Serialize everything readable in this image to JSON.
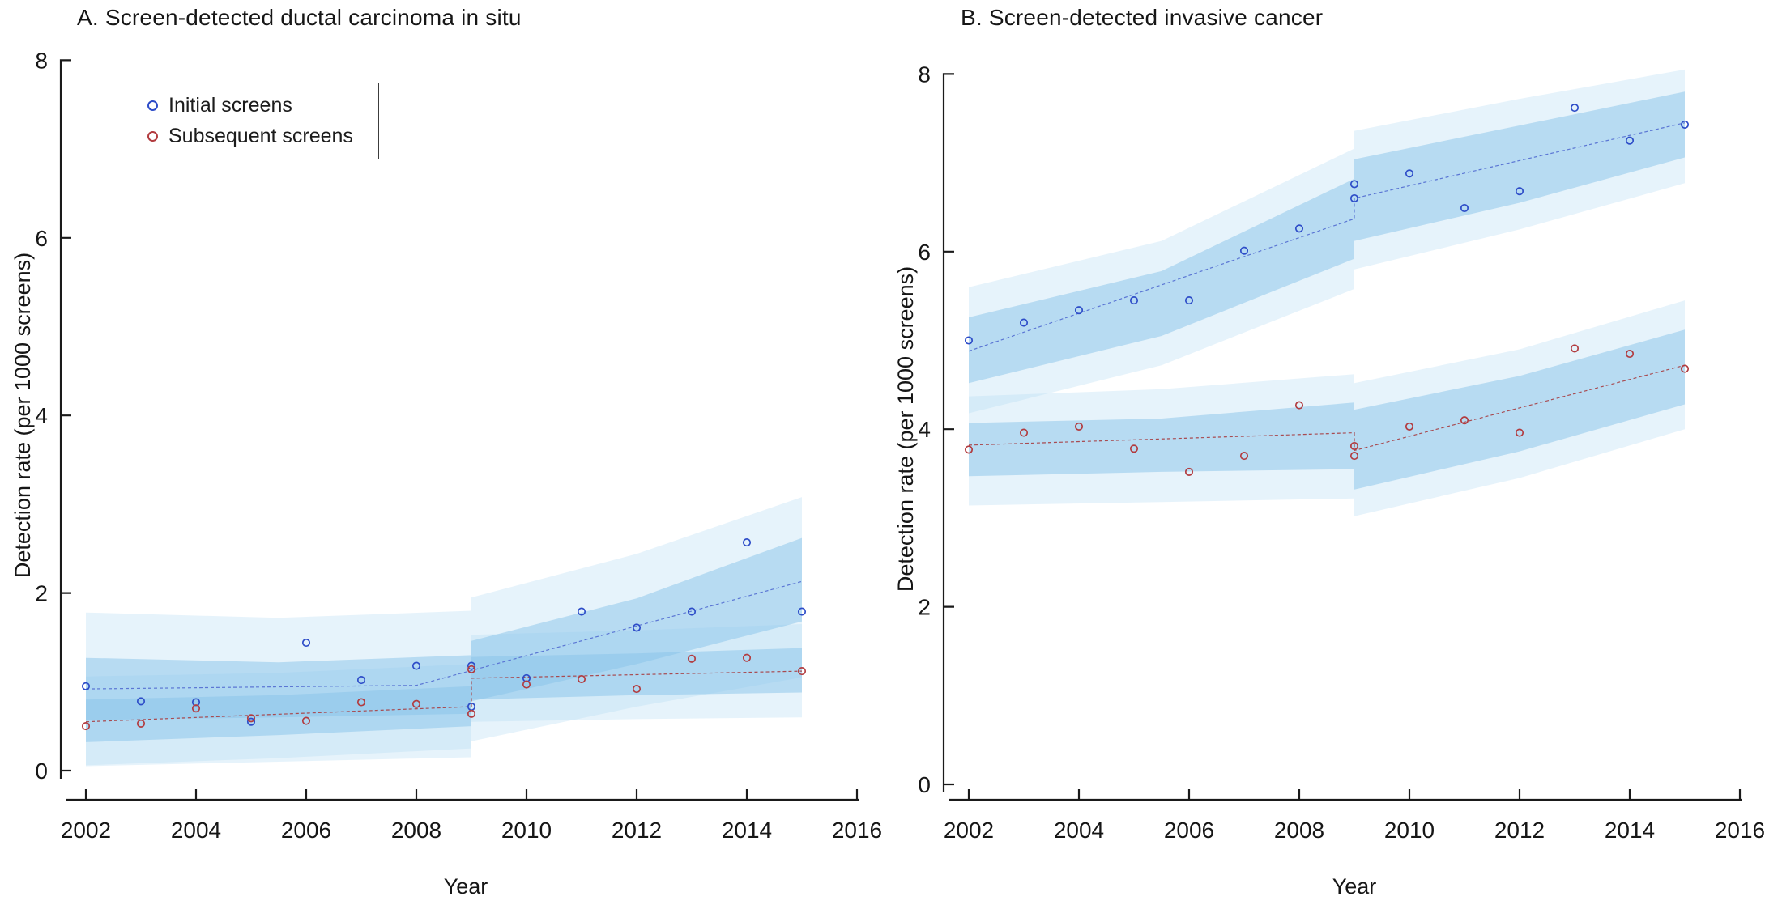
{
  "page": {
    "background": "#ffffff"
  },
  "legend": {
    "items": [
      {
        "label": "Initial screens",
        "series": "initial"
      },
      {
        "label": "Subsequent screens",
        "series": "subsequent"
      }
    ]
  },
  "style": {
    "marker_initial": "#2d4cc8",
    "marker_subsequent": "#b23b3f",
    "line_initial": "#5b76d4",
    "line_subsequent": "#a84a50",
    "band_inner": "rgba(135,196,233,0.50)",
    "band_outer": "rgba(180,220,243,0.33)",
    "axis": "#1a1a1a",
    "text": "#161616"
  },
  "chart_data": [
    {
      "type": "scatter",
      "panel": "A",
      "title": "A. Screen-detected ductal carcinoma in situ",
      "xlabel": "Year",
      "ylabel": "Detection rate (per 1000 screens)",
      "x_ticks": [
        2002,
        2004,
        2006,
        2008,
        2010,
        2012,
        2014,
        2016
      ],
      "y_ticks": [
        0,
        2,
        4,
        6,
        8
      ],
      "xlim": [
        2001.6,
        2016.1
      ],
      "ylim": [
        0,
        8
      ],
      "discontinuity_year": 2009,
      "grid": false,
      "legend_position": "top-left-inside",
      "series": [
        {
          "name": "Initial screens",
          "key": "initial",
          "points": [
            [
              2002,
              0.95
            ],
            [
              2003,
              0.78
            ],
            [
              2004,
              0.77
            ],
            [
              2005,
              0.55
            ],
            [
              2006,
              1.44
            ],
            [
              2007,
              1.02
            ],
            [
              2008,
              1.18
            ],
            [
              2009,
              0.72
            ],
            [
              2009,
              1.18
            ],
            [
              2010,
              1.04
            ],
            [
              2011,
              1.79
            ],
            [
              2012,
              1.61
            ],
            [
              2013,
              1.79
            ],
            [
              2014,
              2.57
            ],
            [
              2015,
              1.79
            ]
          ]
        },
        {
          "name": "Subsequent screens",
          "key": "subsequent",
          "points": [
            [
              2002,
              0.5
            ],
            [
              2003,
              0.53
            ],
            [
              2004,
              0.7
            ],
            [
              2005,
              0.59
            ],
            [
              2006,
              0.56
            ],
            [
              2007,
              0.77
            ],
            [
              2008,
              0.75
            ],
            [
              2009,
              0.64
            ],
            [
              2009,
              1.14
            ],
            [
              2010,
              0.97
            ],
            [
              2011,
              1.03
            ],
            [
              2012,
              0.92
            ],
            [
              2013,
              1.26
            ],
            [
              2014,
              1.27
            ],
            [
              2015,
              1.12
            ]
          ]
        }
      ],
      "fit_lines": [
        {
          "series": "initial",
          "path": [
            [
              2002,
              0.92
            ],
            [
              2008,
              0.96
            ],
            [
              2015,
              2.13
            ]
          ]
        },
        {
          "series": "subsequent",
          "path": [
            [
              2002,
              0.55
            ],
            [
              2009,
              0.72
            ],
            [
              2009,
              1.04
            ],
            [
              2015,
              1.12
            ]
          ]
        }
      ],
      "bands": [
        {
          "series": "initial",
          "level": "outer",
          "x": [
            2002,
            2005.5,
            2009
          ],
          "lo": [
            0.05,
            0.1,
            0.15
          ],
          "hi": [
            1.78,
            1.72,
            1.8
          ]
        },
        {
          "series": "initial",
          "level": "outer",
          "x": [
            2009,
            2012,
            2015
          ],
          "lo": [
            0.33,
            0.72,
            1.05
          ],
          "hi": [
            1.95,
            2.44,
            3.08
          ]
        },
        {
          "series": "subsequent",
          "level": "outer",
          "x": [
            2002,
            2005.5,
            2009
          ],
          "lo": [
            0.06,
            0.14,
            0.25
          ],
          "hi": [
            1.06,
            1.1,
            1.2
          ]
        },
        {
          "series": "subsequent",
          "level": "outer",
          "x": [
            2009,
            2012,
            2015
          ],
          "lo": [
            0.55,
            0.58,
            0.6
          ],
          "hi": [
            1.53,
            1.58,
            1.65
          ]
        },
        {
          "series": "initial",
          "level": "inner",
          "x": [
            2002,
            2005.5,
            2009
          ],
          "lo": [
            0.57,
            0.6,
            0.64
          ],
          "hi": [
            1.27,
            1.22,
            1.3
          ]
        },
        {
          "series": "initial",
          "level": "inner",
          "x": [
            2009,
            2012,
            2015
          ],
          "lo": [
            0.78,
            1.2,
            1.68
          ],
          "hi": [
            1.46,
            1.94,
            2.62
          ]
        },
        {
          "series": "subsequent",
          "level": "inner",
          "x": [
            2002,
            2005.5,
            2009
          ],
          "lo": [
            0.32,
            0.4,
            0.5
          ],
          "hi": [
            0.8,
            0.85,
            0.95
          ]
        },
        {
          "series": "subsequent",
          "level": "inner",
          "x": [
            2009,
            2012,
            2015
          ],
          "lo": [
            0.8,
            0.85,
            0.88
          ],
          "hi": [
            1.28,
            1.32,
            1.38
          ]
        }
      ]
    },
    {
      "type": "scatter",
      "panel": "B",
      "title": "B. Screen-detected invasive cancer",
      "xlabel": "Year",
      "ylabel": "Detection rate (per 1000 screens)",
      "x_ticks": [
        2002,
        2004,
        2006,
        2008,
        2010,
        2012,
        2014,
        2016
      ],
      "y_ticks": [
        0,
        2,
        4,
        6,
        8
      ],
      "xlim": [
        2001.6,
        2016.1
      ],
      "ylim": [
        0,
        8
      ],
      "discontinuity_year": 2009,
      "grid": false,
      "legend_position": "none",
      "series": [
        {
          "name": "Initial screens",
          "key": "initial",
          "points": [
            [
              2002,
              5.0
            ],
            [
              2003,
              5.2
            ],
            [
              2004,
              5.34
            ],
            [
              2005,
              5.45
            ],
            [
              2006,
              5.45
            ],
            [
              2007,
              6.01
            ],
            [
              2008,
              6.26
            ],
            [
              2009,
              6.6
            ],
            [
              2009,
              6.76
            ],
            [
              2010,
              6.88
            ],
            [
              2011,
              6.49
            ],
            [
              2012,
              6.68
            ],
            [
              2013,
              7.62
            ],
            [
              2014,
              7.25
            ],
            [
              2015,
              7.43
            ]
          ]
        },
        {
          "name": "Subsequent screens",
          "key": "subsequent",
          "points": [
            [
              2002,
              3.77
            ],
            [
              2003,
              3.96
            ],
            [
              2004,
              4.03
            ],
            [
              2005,
              3.78
            ],
            [
              2006,
              3.52
            ],
            [
              2007,
              3.7
            ],
            [
              2008,
              4.27
            ],
            [
              2009,
              3.7
            ],
            [
              2009,
              3.81
            ],
            [
              2010,
              4.03
            ],
            [
              2011,
              4.1
            ],
            [
              2012,
              3.96
            ],
            [
              2013,
              4.91
            ],
            [
              2014,
              4.85
            ],
            [
              2015,
              4.68
            ]
          ]
        }
      ],
      "fit_lines": [
        {
          "series": "initial",
          "path": [
            [
              2002,
              4.88
            ],
            [
              2009,
              6.37
            ],
            [
              2009,
              6.6
            ],
            [
              2015,
              7.45
            ]
          ]
        },
        {
          "series": "subsequent",
          "path": [
            [
              2002,
              3.82
            ],
            [
              2009,
              3.96
            ],
            [
              2009,
              3.76
            ],
            [
              2015,
              4.72
            ]
          ]
        }
      ],
      "bands": [
        {
          "series": "initial",
          "level": "outer",
          "x": [
            2002,
            2005.5,
            2009
          ],
          "lo": [
            4.18,
            4.72,
            5.58
          ],
          "hi": [
            5.6,
            6.12,
            7.16
          ]
        },
        {
          "series": "initial",
          "level": "outer",
          "x": [
            2009,
            2012,
            2015
          ],
          "lo": [
            5.8,
            6.25,
            6.77
          ],
          "hi": [
            7.36,
            7.72,
            8.05
          ]
        },
        {
          "series": "subsequent",
          "level": "outer",
          "x": [
            2002,
            2005.5,
            2009
          ],
          "lo": [
            3.14,
            3.18,
            3.22
          ],
          "hi": [
            4.37,
            4.45,
            4.62
          ]
        },
        {
          "series": "subsequent",
          "level": "outer",
          "x": [
            2009,
            2012,
            2015
          ],
          "lo": [
            3.02,
            3.45,
            4.0
          ],
          "hi": [
            4.52,
            4.9,
            5.45
          ]
        },
        {
          "series": "initial",
          "level": "inner",
          "x": [
            2002,
            2005.5,
            2009
          ],
          "lo": [
            4.52,
            5.05,
            5.92
          ],
          "hi": [
            5.26,
            5.78,
            6.82
          ]
        },
        {
          "series": "initial",
          "level": "inner",
          "x": [
            2009,
            2012,
            2015
          ],
          "lo": [
            6.12,
            6.55,
            7.06
          ],
          "hi": [
            7.04,
            7.42,
            7.8
          ]
        },
        {
          "series": "subsequent",
          "level": "inner",
          "x": [
            2002,
            2005.5,
            2009
          ],
          "lo": [
            3.47,
            3.52,
            3.55
          ],
          "hi": [
            4.07,
            4.12,
            4.3
          ]
        },
        {
          "series": "subsequent",
          "level": "inner",
          "x": [
            2009,
            2012,
            2015
          ],
          "lo": [
            3.32,
            3.75,
            4.28
          ],
          "hi": [
            4.22,
            4.6,
            5.12
          ]
        }
      ]
    }
  ]
}
